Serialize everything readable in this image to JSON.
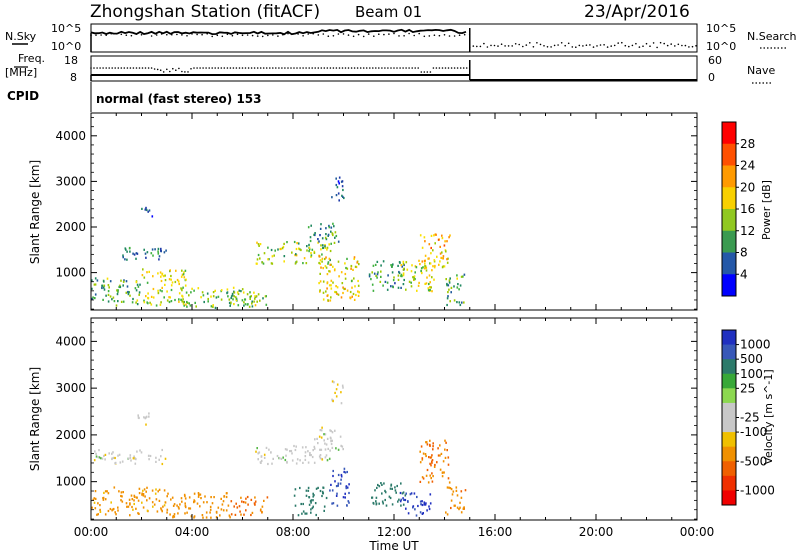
{
  "header": {
    "title": "Zhongshan Station (fitACF)",
    "beam": "Beam 01",
    "date": "23/Apr/2016"
  },
  "summary_panels": {
    "nsky_label": "N.Sky",
    "nsearch_label": "N.Search",
    "freq_label_line1": "Freq.",
    "freq_label_line2": "[MHz]",
    "nave_label": "Nave",
    "cpid_label": "CPID",
    "noise_ticks_left": [
      "10^5",
      "10^0"
    ],
    "noise_ticks_right": [
      "10^5",
      "10^0"
    ],
    "freq_ticks": [
      "18",
      "8"
    ],
    "nave_ticks": [
      "60",
      "0"
    ],
    "cpid_text": "normal (fast stereo) 153"
  },
  "power_colorbar": {
    "label": "Power [dB]",
    "ticks": [
      "28",
      "24",
      "20",
      "16",
      "12",
      "8",
      "4"
    ],
    "colors": [
      "#ff0000",
      "#ff4a00",
      "#ff8c00",
      "#ffc000",
      "#f8e000",
      "#a0c800",
      "#40b040",
      "#208860",
      "#205a9a",
      "#1e3aa8",
      "#0000ff"
    ]
  },
  "velocity_colorbar": {
    "label": "Velocity [m s^-1]",
    "ticks": [
      "1000",
      "500",
      "100",
      "25",
      "-25",
      "-100",
      "-500",
      "-1000"
    ],
    "colors": [
      "#2030c0",
      "#3858b8",
      "#2c7a6a",
      "#38a838",
      "#8cd850",
      "#c8c8c8",
      "#c8c8c8",
      "#f0c000",
      "#f09000",
      "#f06000",
      "#f03000",
      "#f00000"
    ]
  },
  "chart_data": [
    {
      "type": "heatmap",
      "name": "power",
      "ylabel": "Slant Range [km]",
      "x_range_hours": [
        0,
        24
      ],
      "ylim": [
        180,
        4500
      ],
      "yticks": [
        1000,
        2000,
        3000,
        4000
      ],
      "xtick_labels": [
        "00:00",
        "04:00",
        "08:00",
        "12:00",
        "16:00",
        "20:00",
        "00:00"
      ],
      "echo_regions": [
        {
          "t": [
            0.0,
            2.0
          ],
          "r": [
            300,
            900
          ],
          "db": 12
        },
        {
          "t": [
            2.0,
            3.8
          ],
          "r": [
            300,
            1100
          ],
          "db": 18
        },
        {
          "t": [
            1.0,
            3.0
          ],
          "r": [
            1300,
            1600
          ],
          "db": 8
        },
        {
          "t": [
            1.8,
            2.4
          ],
          "r": [
            2250,
            2450
          ],
          "db": 6
        },
        {
          "t": [
            3.5,
            6.5
          ],
          "r": [
            250,
            700
          ],
          "db": 14
        },
        {
          "t": [
            5.5,
            7.0
          ],
          "r": [
            300,
            600
          ],
          "db": 16
        },
        {
          "t": [
            6.5,
            9.5
          ],
          "r": [
            1200,
            1700
          ],
          "db": 16
        },
        {
          "t": [
            8.5,
            9.8
          ],
          "r": [
            1600,
            2100
          ],
          "db": 10
        },
        {
          "t": [
            9.5,
            10.0
          ],
          "r": [
            2600,
            3200
          ],
          "db": 6
        },
        {
          "t": [
            9.0,
            10.6
          ],
          "r": [
            400,
            1400
          ],
          "db": 20
        },
        {
          "t": [
            11.0,
            12.4
          ],
          "r": [
            600,
            1300
          ],
          "db": 10
        },
        {
          "t": [
            12.2,
            13.6
          ],
          "r": [
            600,
            1300
          ],
          "db": 18
        },
        {
          "t": [
            13.0,
            14.2
          ],
          "r": [
            1100,
            1900
          ],
          "db": 22
        },
        {
          "t": [
            14.0,
            14.8
          ],
          "r": [
            300,
            1000
          ],
          "db": 12
        }
      ]
    },
    {
      "type": "heatmap",
      "name": "velocity",
      "ylabel": "Slant Range [km]",
      "xlabel": "Time UT",
      "x_range_hours": [
        0,
        24
      ],
      "ylim": [
        180,
        4500
      ],
      "yticks": [
        1000,
        2000,
        3000,
        4000
      ],
      "xtick_labels": [
        "00:00",
        "04:00",
        "08:00",
        "12:00",
        "16:00",
        "20:00",
        "00:00"
      ],
      "echo_regions": [
        {
          "t": [
            0.0,
            3.0
          ],
          "r": [
            300,
            900
          ],
          "v": -150
        },
        {
          "t": [
            0.0,
            3.0
          ],
          "r": [
            1400,
            1700
          ],
          "v": 0
        },
        {
          "t": [
            1.8,
            2.4
          ],
          "r": [
            2200,
            2500
          ],
          "v": 0
        },
        {
          "t": [
            3.0,
            5.5
          ],
          "r": [
            250,
            800
          ],
          "v": -200
        },
        {
          "t": [
            5.5,
            7.0
          ],
          "r": [
            300,
            700
          ],
          "v": -400
        },
        {
          "t": [
            6.5,
            9.5
          ],
          "r": [
            1400,
            1800
          ],
          "v": 0
        },
        {
          "t": [
            8.8,
            10.0
          ],
          "r": [
            1700,
            2200
          ],
          "v": 0
        },
        {
          "t": [
            9.5,
            10.0
          ],
          "r": [
            2700,
            3200
          ],
          "v": -20
        },
        {
          "t": [
            9.4,
            10.2
          ],
          "r": [
            500,
            1300
          ],
          "v": 700
        },
        {
          "t": [
            8.0,
            9.3
          ],
          "r": [
            300,
            900
          ],
          "v": 150
        },
        {
          "t": [
            11.0,
            12.5
          ],
          "r": [
            500,
            1000
          ],
          "v": 200
        },
        {
          "t": [
            12.2,
            13.5
          ],
          "r": [
            300,
            800
          ],
          "v": 900
        },
        {
          "t": [
            13.0,
            14.2
          ],
          "r": [
            1000,
            1900
          ],
          "v": -300
        },
        {
          "t": [
            14.0,
            14.8
          ],
          "r": [
            300,
            900
          ],
          "v": -250
        }
      ]
    }
  ]
}
